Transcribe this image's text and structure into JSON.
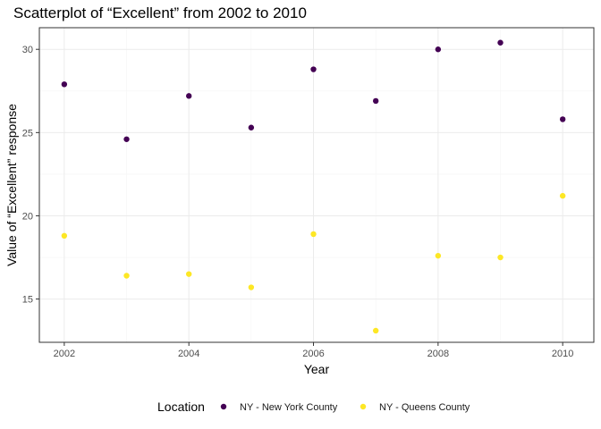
{
  "chart_data": {
    "type": "scatter",
    "title": "Scatterplot of “Excellent” from 2002 to 2010",
    "xlabel": "Year",
    "ylabel": "Value of “Excellent” response",
    "xlim": [
      2001.6,
      2010.5
    ],
    "ylim": [
      12.4,
      31.3
    ],
    "x_ticks": [
      2002,
      2004,
      2006,
      2008,
      2010
    ],
    "y_ticks": [
      15,
      20,
      25,
      30
    ],
    "grid": true,
    "legend": {
      "title": "Location",
      "placement": "bottom"
    },
    "series": [
      {
        "name": "NY - New York County",
        "color": "#440154",
        "x": [
          2002,
          2003,
          2004,
          2005,
          2006,
          2007,
          2008,
          2009,
          2010
        ],
        "y": [
          27.9,
          24.6,
          27.2,
          25.3,
          28.8,
          26.9,
          30.0,
          30.4,
          25.8
        ]
      },
      {
        "name": "NY - Queens County",
        "color": "#FDE725",
        "x": [
          2002,
          2003,
          2004,
          2005,
          2006,
          2007,
          2008,
          2009,
          2010
        ],
        "y": [
          18.8,
          16.4,
          16.5,
          15.7,
          18.9,
          13.1,
          17.6,
          17.5,
          21.2
        ]
      }
    ]
  }
}
